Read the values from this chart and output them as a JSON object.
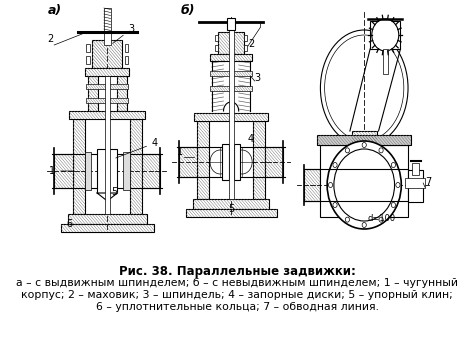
{
  "title": "Рис. 38. Параллельные задвижки:",
  "caption_lines": [
    "а – с выдвижным шпинделем; б – с невыдвижным шпинделем; 1 – чугунный",
    "корпус; 2 – маховик; 3 – шпиндель; 4 – запорные диски; 5 – упорный клин;",
    "6 – уплотнительные кольца; 7 – обводная линия."
  ],
  "label_a": "а)",
  "label_b": "б)",
  "bg_color": "#ffffff",
  "text_color": "#000000",
  "title_fontsize": 8.5,
  "caption_fontsize": 7.8,
  "label_fontsize": 9,
  "fig_width": 4.74,
  "fig_height": 3.63,
  "dpi": 100
}
